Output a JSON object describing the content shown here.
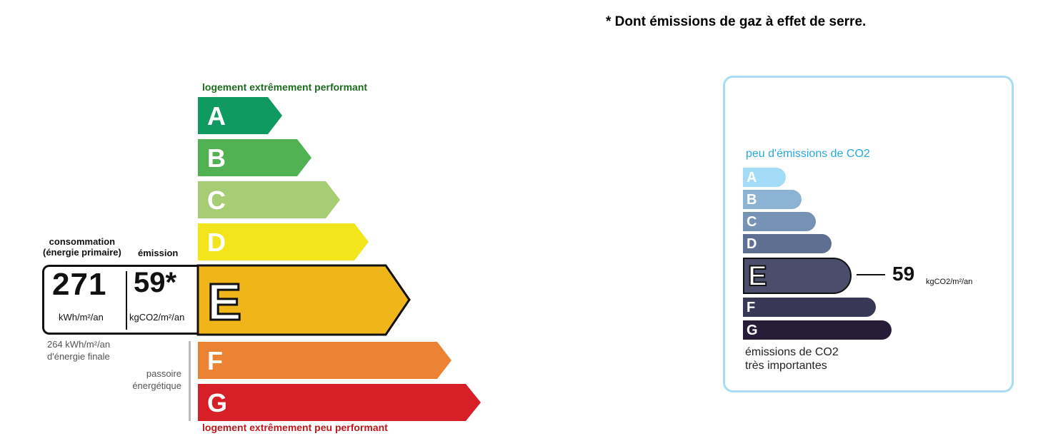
{
  "footnote": "* Dont émissions de gaz à effet de serre.",
  "dpe": {
    "label_top": "logement extrêmement performant",
    "label_bottom": "logement extrêmement peu performant",
    "classes": [
      {
        "letter": "A",
        "color": "#0f9a61"
      },
      {
        "letter": "B",
        "color": "#52b153"
      },
      {
        "letter": "C",
        "color": "#a6cd73"
      },
      {
        "letter": "D",
        "color": "#f2e51c"
      },
      {
        "letter": "E",
        "color": "#f0b519"
      },
      {
        "letter": "F",
        "color": "#eb8234"
      },
      {
        "letter": "G",
        "color": "#d61f26"
      }
    ],
    "current_class": "E",
    "consumption_header": "consommation\n(énergie primaire)",
    "emission_header": "émission",
    "consumption_value": "271",
    "consumption_unit": "kWh/m²/an",
    "emission_value": "59*",
    "emission_unit": "kgCO2/m²/an",
    "final_energy_line1": "264 kWh/m²/an",
    "final_energy_line2": "d'énergie finale",
    "passoire_line1": "passoire",
    "passoire_line2": "énergétique"
  },
  "ges": {
    "label_top": "peu d'émissions de CO2",
    "label_bottom_line1": "émissions de CO2",
    "label_bottom_line2": "très importantes",
    "classes": [
      {
        "letter": "A",
        "color": "#a4dbf7"
      },
      {
        "letter": "B",
        "color": "#8cb3d4"
      },
      {
        "letter": "C",
        "color": "#7693b5"
      },
      {
        "letter": "D",
        "color": "#5e6f91"
      },
      {
        "letter": "E",
        "color": "#4a4e6c"
      },
      {
        "letter": "F",
        "color": "#383755"
      },
      {
        "letter": "G",
        "color": "#271d38"
      }
    ],
    "current_class": "E",
    "value": "59",
    "unit": "kgCO2/m²/an"
  }
}
